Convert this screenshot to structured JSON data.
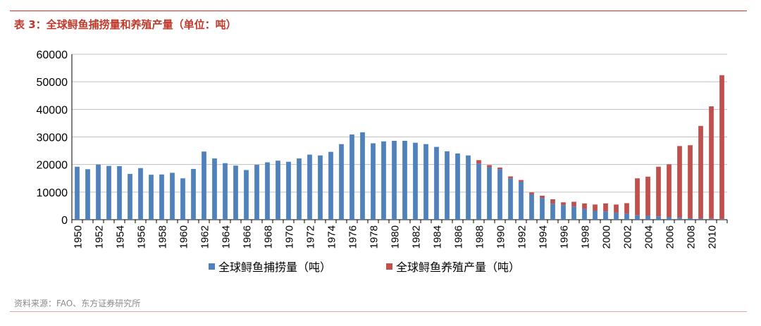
{
  "header": {
    "title": "表 3：全球鲟鱼捕捞量和养殖产量（单位：吨）"
  },
  "footer": {
    "source": "资料来源：FAO、东方证券研究所"
  },
  "colors": {
    "accent": "#c0392b",
    "catch": "#4f81bd",
    "aqua": "#c0504d",
    "grid": "#bfbfbf"
  },
  "chart_data": {
    "type": "bar",
    "stacked": true,
    "grid": true,
    "legend_position": "bottom",
    "ylim": [
      0,
      60000
    ],
    "yticks": [
      0,
      10000,
      20000,
      30000,
      40000,
      50000,
      60000
    ],
    "x_tick_labels": [
      "1950",
      "1952",
      "1954",
      "1956",
      "1958",
      "1960",
      "1962",
      "1964",
      "1966",
      "1968",
      "1970",
      "1972",
      "1974",
      "1976",
      "1978",
      "1980",
      "1982",
      "1984",
      "1986",
      "1988",
      "1990",
      "1992",
      "1994",
      "1996",
      "1998",
      "2000",
      "2002",
      "2004",
      "2006",
      "2008",
      "2010"
    ],
    "categories": [
      "1950",
      "1951",
      "1952",
      "1953",
      "1954",
      "1955",
      "1956",
      "1957",
      "1958",
      "1959",
      "1960",
      "1961",
      "1962",
      "1963",
      "1964",
      "1965",
      "1966",
      "1967",
      "1968",
      "1969",
      "1970",
      "1971",
      "1972",
      "1973",
      "1974",
      "1975",
      "1976",
      "1977",
      "1978",
      "1979",
      "1980",
      "1981",
      "1982",
      "1983",
      "1984",
      "1985",
      "1986",
      "1987",
      "1988",
      "1989",
      "1990",
      "1991",
      "1992",
      "1993",
      "1994",
      "1995",
      "1996",
      "1997",
      "1998",
      "1999",
      "2000",
      "2001",
      "2002",
      "2003",
      "2004",
      "2005",
      "2006",
      "2007",
      "2008",
      "2009",
      "2010",
      "2011"
    ],
    "series": [
      {
        "name": "全球鲟鱼捕捞量（吨）",
        "color": "#4f81bd",
        "values": [
          19200,
          18300,
          20000,
          19500,
          19400,
          16600,
          18700,
          16300,
          16400,
          17000,
          15000,
          18400,
          24700,
          22200,
          20500,
          19600,
          18000,
          19900,
          20800,
          21400,
          21000,
          22200,
          23600,
          23300,
          24600,
          27400,
          30900,
          31700,
          27700,
          28400,
          28600,
          28600,
          27900,
          27400,
          26400,
          24800,
          24000,
          23300,
          20400,
          19000,
          18300,
          15000,
          13800,
          9200,
          7900,
          5800,
          5300,
          4800,
          3900,
          3200,
          3000,
          2500,
          2200,
          1600,
          1400,
          1200,
          900,
          700,
          500,
          400,
          300,
          200
        ]
      },
      {
        "name": "全球鲟鱼养殖产量（吨）",
        "color": "#c0504d",
        "values": [
          0,
          0,
          0,
          0,
          0,
          0,
          0,
          0,
          0,
          0,
          0,
          0,
          0,
          0,
          0,
          0,
          0,
          0,
          0,
          0,
          0,
          0,
          0,
          0,
          0,
          0,
          0,
          0,
          0,
          0,
          0,
          0,
          0,
          0,
          0,
          0,
          0,
          0,
          1200,
          800,
          600,
          700,
          600,
          700,
          800,
          1600,
          1000,
          1700,
          2000,
          2300,
          2900,
          3000,
          3800,
          13400,
          14200,
          18000,
          19200,
          26000,
          26500,
          33600,
          40800,
          52200
        ]
      }
    ]
  }
}
